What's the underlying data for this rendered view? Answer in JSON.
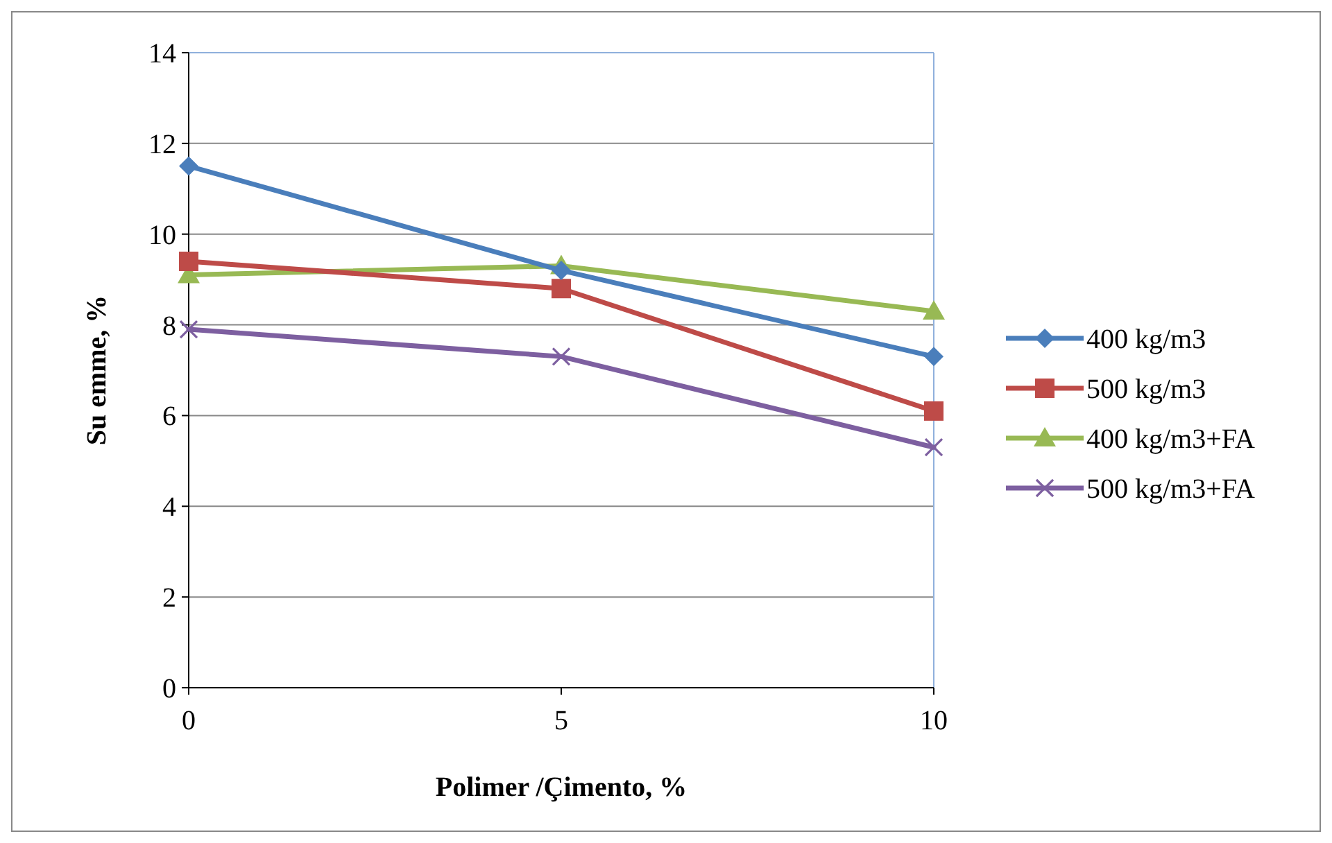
{
  "chart_data": {
    "type": "line",
    "xlabel": "Polimer /Çimento, %",
    "ylabel": "Su emme, %",
    "x": [
      0,
      5,
      10
    ],
    "xlim": [
      0,
      10
    ],
    "xticks": [
      0,
      5,
      10
    ],
    "ylim": [
      0,
      14
    ],
    "yticks": [
      0,
      2,
      4,
      6,
      8,
      10,
      12,
      14
    ],
    "grid": "y",
    "legend": "right",
    "series": [
      {
        "name": "400 kg/m3",
        "color": "#4a7ebb",
        "marker": "diamond",
        "values": [
          11.5,
          9.2,
          7.3
        ]
      },
      {
        "name": "500 kg/m3",
        "color": "#be4b48",
        "marker": "square",
        "values": [
          9.4,
          8.8,
          6.1
        ]
      },
      {
        "name": "400 kg/m3+FA",
        "color": "#98b954",
        "marker": "triangle",
        "values": [
          9.1,
          9.3,
          8.3
        ]
      },
      {
        "name": "500 kg/m3+FA",
        "color": "#7d5fa0",
        "marker": "cross",
        "values": [
          7.9,
          7.3,
          5.3
        ]
      }
    ]
  }
}
